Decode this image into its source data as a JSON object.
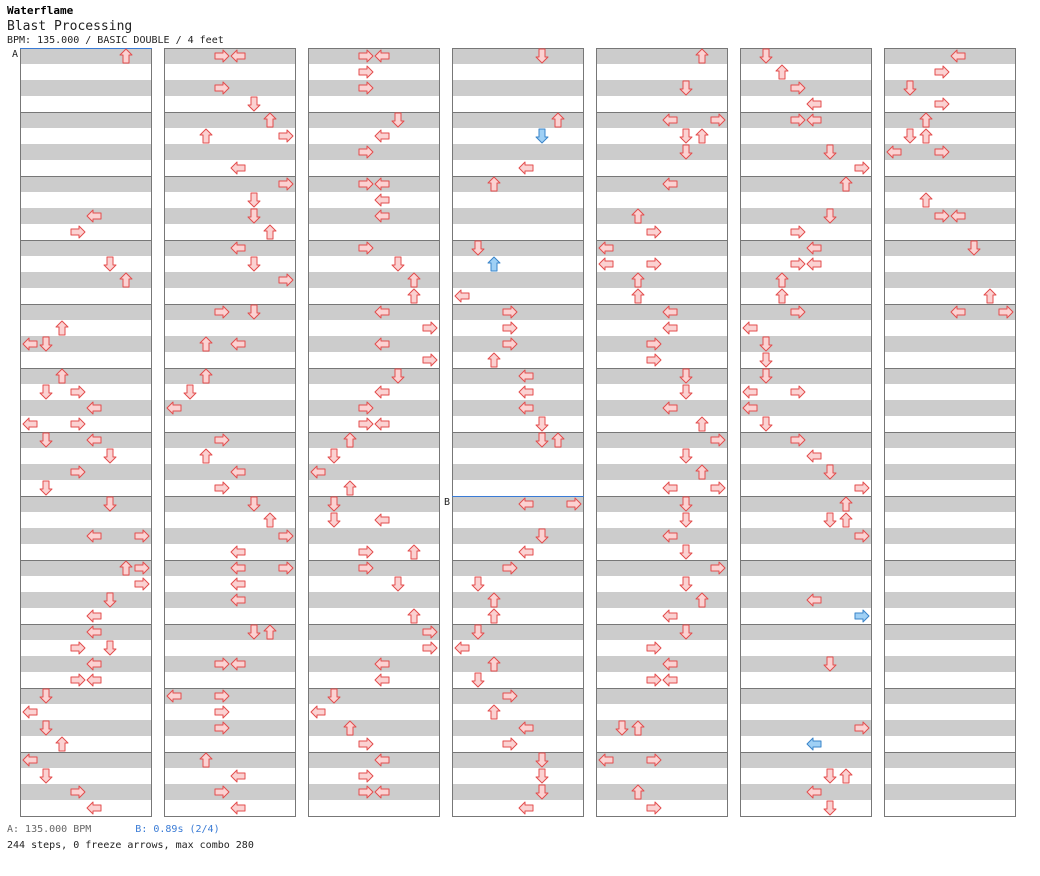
{
  "header": {
    "artist": "Waterflame",
    "title": "Blast Processing",
    "meta": "BPM: 135.000 / BASIC DOUBLE / 4 feet"
  },
  "markers": {
    "a_label": "A",
    "b_label": "B"
  },
  "footer": {
    "bpm_note": "A: 135.000 BPM",
    "stop_note": "B: 0.89s (2/4)",
    "stats": "244 steps, 0 freeze arrows, max combo 280"
  },
  "colors": {
    "stripe": "#cccccc",
    "arrow_fill": "#fbd2d2",
    "arrow_stroke": "#e34d4d",
    "alt_fill": "#9fd0f5",
    "alt_stroke": "#3a84c9",
    "marker_line": "#3a7bd5"
  },
  "chart": {
    "columns": 7,
    "measures_per_column": 12,
    "lanes": 8,
    "steps": [
      [
        0,
        0,
        0,
        6
      ],
      [
        0,
        2,
        2,
        4
      ],
      [
        0,
        2,
        3,
        3
      ],
      [
        0,
        2,
        5,
        5
      ],
      [
        0,
        3,
        2,
        6
      ],
      [
        0,
        3,
        6,
        1
      ],
      [
        0,
        3,
        10,
        4
      ],
      [
        0,
        3,
        13,
        5
      ],
      [
        0,
        4,
        1,
        2
      ],
      [
        0,
        4,
        2,
        0
      ],
      [
        0,
        4,
        5,
        3
      ],
      [
        0,
        4,
        8,
        1
      ],
      [
        0,
        5,
        0,
        2
      ],
      [
        0,
        5,
        1,
        1
      ],
      [
        0,
        5,
        3,
        0
      ],
      [
        0,
        5,
        3,
        3
      ],
      [
        0,
        5,
        7,
        1
      ],
      [
        0,
        6,
        0,
        4
      ],
      [
        0,
        6,
        2,
        3
      ],
      [
        0,
        6,
        4,
        5
      ],
      [
        0,
        6,
        6,
        7
      ],
      [
        0,
        7,
        0,
        5
      ],
      [
        0,
        7,
        2,
        4
      ],
      [
        0,
        7,
        4,
        6
      ],
      [
        0,
        7,
        6,
        5
      ],
      [
        0,
        8,
        0,
        7
      ],
      [
        0,
        8,
        1,
        7
      ],
      [
        0,
        8,
        3,
        4
      ],
      [
        0,
        8,
        4,
        4
      ],
      [
        0,
        8,
        5,
        5
      ],
      [
        0,
        9,
        1,
        3
      ],
      [
        0,
        9,
        2,
        4
      ],
      [
        0,
        9,
        3,
        3
      ],
      [
        0,
        9,
        3,
        4
      ],
      [
        0,
        10,
        0,
        1
      ],
      [
        0,
        10,
        1,
        0
      ],
      [
        0,
        10,
        2,
        1
      ],
      [
        0,
        10,
        3,
        2
      ],
      [
        0,
        11,
        0,
        0
      ],
      [
        0,
        11,
        1,
        1
      ],
      [
        0,
        11,
        2,
        3
      ],
      [
        0,
        11,
        3,
        4
      ],
      [
        1,
        0,
        0,
        3
      ],
      [
        1,
        0,
        0,
        4
      ],
      [
        1,
        0,
        2,
        3
      ],
      [
        1,
        0,
        3,
        5
      ],
      [
        1,
        1,
        0,
        6
      ],
      [
        1,
        1,
        1,
        2
      ],
      [
        1,
        1,
        1,
        7
      ],
      [
        1,
        1,
        3,
        4
      ],
      [
        1,
        2,
        0,
        7
      ],
      [
        1,
        2,
        1,
        5
      ],
      [
        1,
        2,
        2,
        5
      ],
      [
        1,
        2,
        3,
        6
      ],
      [
        1,
        3,
        0,
        4
      ],
      [
        1,
        3,
        1,
        5
      ],
      [
        1,
        3,
        2,
        7
      ],
      [
        1,
        4,
        0,
        3
      ],
      [
        1,
        4,
        0,
        5
      ],
      [
        1,
        4,
        2,
        2
      ],
      [
        1,
        4,
        2,
        4
      ],
      [
        1,
        5,
        0,
        2
      ],
      [
        1,
        5,
        1,
        1
      ],
      [
        1,
        5,
        2,
        0
      ],
      [
        1,
        6,
        0,
        3
      ],
      [
        1,
        6,
        1,
        2
      ],
      [
        1,
        6,
        2,
        4
      ],
      [
        1,
        6,
        3,
        3
      ],
      [
        1,
        7,
        0,
        5
      ],
      [
        1,
        7,
        1,
        6
      ],
      [
        1,
        7,
        2,
        7
      ],
      [
        1,
        7,
        3,
        4
      ],
      [
        1,
        8,
        0,
        4
      ],
      [
        1,
        8,
        0,
        7
      ],
      [
        1,
        8,
        1,
        4
      ],
      [
        1,
        8,
        2,
        4
      ],
      [
        1,
        9,
        0,
        5
      ],
      [
        1,
        9,
        0,
        6
      ],
      [
        1,
        9,
        2,
        3
      ],
      [
        1,
        9,
        2,
        4
      ],
      [
        1,
        10,
        0,
        0
      ],
      [
        1,
        10,
        0,
        3
      ],
      [
        1,
        10,
        1,
        3
      ],
      [
        1,
        10,
        2,
        3
      ],
      [
        1,
        11,
        0,
        2
      ],
      [
        1,
        11,
        1,
        4
      ],
      [
        1,
        11,
        2,
        3
      ],
      [
        1,
        11,
        3,
        4
      ],
      [
        2,
        0,
        0,
        3
      ],
      [
        2,
        0,
        0,
        4
      ],
      [
        2,
        0,
        1,
        3
      ],
      [
        2,
        0,
        2,
        3
      ],
      [
        2,
        1,
        0,
        5
      ],
      [
        2,
        1,
        1,
        4
      ],
      [
        2,
        1,
        2,
        3
      ],
      [
        2,
        2,
        0,
        3
      ],
      [
        2,
        2,
        0,
        4
      ],
      [
        2,
        2,
        1,
        4
      ],
      [
        2,
        2,
        2,
        4
      ],
      [
        2,
        3,
        0,
        3
      ],
      [
        2,
        3,
        1,
        5
      ],
      [
        2,
        3,
        2,
        6
      ],
      [
        2,
        3,
        3,
        6
      ],
      [
        2,
        4,
        0,
        4
      ],
      [
        2,
        4,
        1,
        7
      ],
      [
        2,
        4,
        2,
        4
      ],
      [
        2,
        4,
        3,
        7
      ],
      [
        2,
        5,
        0,
        5
      ],
      [
        2,
        5,
        1,
        4
      ],
      [
        2,
        5,
        2,
        3
      ],
      [
        2,
        5,
        3,
        3
      ],
      [
        2,
        5,
        3,
        4
      ],
      [
        2,
        6,
        0,
        2
      ],
      [
        2,
        6,
        1,
        1
      ],
      [
        2,
        6,
        2,
        0
      ],
      [
        2,
        6,
        3,
        2
      ],
      [
        2,
        7,
        0,
        1
      ],
      [
        2,
        7,
        1,
        1
      ],
      [
        2,
        7,
        1,
        4
      ],
      [
        2,
        7,
        3,
        3
      ],
      [
        2,
        7,
        3,
        6
      ],
      [
        2,
        8,
        0,
        3
      ],
      [
        2,
        8,
        1,
        5
      ],
      [
        2,
        8,
        3,
        6
      ],
      [
        2,
        9,
        0,
        7
      ],
      [
        2,
        9,
        1,
        7
      ],
      [
        2,
        9,
        2,
        4
      ],
      [
        2,
        9,
        3,
        4
      ],
      [
        2,
        10,
        0,
        1
      ],
      [
        2,
        10,
        1,
        0
      ],
      [
        2,
        10,
        2,
        2
      ],
      [
        2,
        10,
        3,
        3
      ],
      [
        2,
        11,
        0,
        4
      ],
      [
        2,
        11,
        1,
        3
      ],
      [
        2,
        11,
        2,
        3
      ],
      [
        2,
        11,
        2,
        4
      ],
      [
        3,
        0,
        0,
        5
      ],
      [
        3,
        1,
        0,
        6
      ],
      [
        3,
        1,
        1,
        5,
        1
      ],
      [
        3,
        1,
        3,
        4
      ],
      [
        3,
        2,
        0,
        2
      ],
      [
        3,
        3,
        0,
        1
      ],
      [
        3,
        3,
        1,
        2,
        1
      ],
      [
        3,
        3,
        3,
        0
      ],
      [
        3,
        4,
        0,
        3
      ],
      [
        3,
        4,
        1,
        3
      ],
      [
        3,
        4,
        2,
        3
      ],
      [
        3,
        4,
        3,
        2
      ],
      [
        3,
        5,
        0,
        4
      ],
      [
        3,
        5,
        1,
        4
      ],
      [
        3,
        5,
        2,
        4
      ],
      [
        3,
        5,
        3,
        5
      ],
      [
        3,
        5,
        4,
        5
      ],
      [
        3,
        5,
        4,
        6
      ],
      [
        3,
        7,
        0,
        4
      ],
      [
        3,
        7,
        0,
        7
      ],
      [
        3,
        7,
        2,
        5
      ],
      [
        3,
        7,
        3,
        4
      ],
      [
        3,
        8,
        0,
        3
      ],
      [
        3,
        8,
        1,
        1
      ],
      [
        3,
        8,
        2,
        2
      ],
      [
        3,
        8,
        3,
        2
      ],
      [
        3,
        9,
        0,
        1
      ],
      [
        3,
        9,
        1,
        0
      ],
      [
        3,
        9,
        2,
        2
      ],
      [
        3,
        9,
        3,
        1
      ],
      [
        3,
        10,
        0,
        3
      ],
      [
        3,
        10,
        1,
        2
      ],
      [
        3,
        10,
        2,
        4
      ],
      [
        3,
        10,
        3,
        3
      ],
      [
        3,
        11,
        0,
        5
      ],
      [
        3,
        11,
        1,
        5
      ],
      [
        3,
        11,
        2,
        5
      ],
      [
        3,
        11,
        3,
        4
      ],
      [
        4,
        0,
        0,
        6
      ],
      [
        4,
        0,
        2,
        5
      ],
      [
        4,
        1,
        0,
        4
      ],
      [
        4,
        1,
        0,
        7
      ],
      [
        4,
        1,
        1,
        5
      ],
      [
        4,
        1,
        1,
        6
      ],
      [
        4,
        1,
        2,
        5
      ],
      [
        4,
        2,
        0,
        4
      ],
      [
        4,
        2,
        2,
        2
      ],
      [
        4,
        2,
        3,
        3
      ],
      [
        4,
        3,
        0,
        0
      ],
      [
        4,
        3,
        1,
        0
      ],
      [
        4,
        3,
        1,
        3
      ],
      [
        4,
        3,
        2,
        2
      ],
      [
        4,
        3,
        3,
        2
      ],
      [
        4,
        4,
        0,
        4
      ],
      [
        4,
        4,
        1,
        4
      ],
      [
        4,
        4,
        2,
        3
      ],
      [
        4,
        4,
        3,
        3
      ],
      [
        4,
        5,
        0,
        5
      ],
      [
        4,
        5,
        1,
        5
      ],
      [
        4,
        5,
        2,
        4
      ],
      [
        4,
        5,
        3,
        6
      ],
      [
        4,
        6,
        0,
        7
      ],
      [
        4,
        6,
        1,
        5
      ],
      [
        4,
        6,
        2,
        6
      ],
      [
        4,
        6,
        3,
        4
      ],
      [
        4,
        6,
        3,
        7
      ],
      [
        4,
        7,
        0,
        5
      ],
      [
        4,
        7,
        1,
        5
      ],
      [
        4,
        7,
        2,
        4
      ],
      [
        4,
        7,
        3,
        5
      ],
      [
        4,
        8,
        0,
        7
      ],
      [
        4,
        8,
        1,
        5
      ],
      [
        4,
        8,
        2,
        6
      ],
      [
        4,
        8,
        3,
        4
      ],
      [
        4,
        9,
        0,
        5
      ],
      [
        4,
        9,
        1,
        3
      ],
      [
        4,
        9,
        2,
        4
      ],
      [
        4,
        9,
        3,
        3
      ],
      [
        4,
        9,
        3,
        4
      ],
      [
        4,
        10,
        2,
        1
      ],
      [
        4,
        10,
        2,
        2
      ],
      [
        4,
        11,
        0,
        0
      ],
      [
        4,
        11,
        0,
        3
      ],
      [
        4,
        11,
        2,
        2
      ],
      [
        4,
        11,
        3,
        3
      ],
      [
        5,
        0,
        0,
        1
      ],
      [
        5,
        0,
        1,
        2
      ],
      [
        5,
        0,
        2,
        3
      ],
      [
        5,
        0,
        3,
        4
      ],
      [
        5,
        1,
        0,
        3
      ],
      [
        5,
        1,
        0,
        4
      ],
      [
        5,
        1,
        2,
        5
      ],
      [
        5,
        1,
        3,
        7
      ],
      [
        5,
        2,
        0,
        6
      ],
      [
        5,
        2,
        2,
        5
      ],
      [
        5,
        2,
        3,
        3
      ],
      [
        5,
        3,
        0,
        4
      ],
      [
        5,
        3,
        1,
        3
      ],
      [
        5,
        3,
        1,
        4
      ],
      [
        5,
        3,
        2,
        2
      ],
      [
        5,
        3,
        3,
        2
      ],
      [
        5,
        4,
        0,
        3
      ],
      [
        5,
        4,
        1,
        0
      ],
      [
        5,
        4,
        2,
        1
      ],
      [
        5,
        4,
        3,
        1
      ],
      [
        5,
        5,
        0,
        1
      ],
      [
        5,
        5,
        1,
        0
      ],
      [
        5,
        5,
        1,
        3
      ],
      [
        5,
        5,
        2,
        0
      ],
      [
        5,
        5,
        3,
        1
      ],
      [
        5,
        6,
        0,
        3
      ],
      [
        5,
        6,
        1,
        4
      ],
      [
        5,
        6,
        2,
        5
      ],
      [
        5,
        6,
        3,
        7
      ],
      [
        5,
        7,
        0,
        6
      ],
      [
        5,
        7,
        1,
        5
      ],
      [
        5,
        7,
        1,
        6
      ],
      [
        5,
        7,
        2,
        7
      ],
      [
        5,
        8,
        2,
        4
      ],
      [
        5,
        8,
        3,
        7,
        1
      ],
      [
        5,
        9,
        2,
        5
      ],
      [
        5,
        10,
        2,
        7
      ],
      [
        5,
        10,
        3,
        4,
        1
      ],
      [
        5,
        11,
        1,
        5
      ],
      [
        5,
        11,
        1,
        6
      ],
      [
        5,
        11,
        2,
        4
      ],
      [
        5,
        11,
        3,
        5
      ],
      [
        6,
        0,
        0,
        4
      ],
      [
        6,
        0,
        1,
        3
      ],
      [
        6,
        0,
        2,
        1
      ],
      [
        6,
        0,
        3,
        3
      ],
      [
        6,
        1,
        0,
        2
      ],
      [
        6,
        1,
        1,
        1
      ],
      [
        6,
        1,
        1,
        2
      ],
      [
        6,
        1,
        2,
        0
      ],
      [
        6,
        1,
        2,
        3
      ],
      [
        6,
        2,
        1,
        2
      ],
      [
        6,
        2,
        2,
        3
      ],
      [
        6,
        2,
        2,
        4
      ],
      [
        6,
        3,
        0,
        5
      ],
      [
        6,
        3,
        3,
        6
      ],
      [
        6,
        4,
        0,
        4
      ],
      [
        6,
        4,
        0,
        7
      ]
    ]
  }
}
